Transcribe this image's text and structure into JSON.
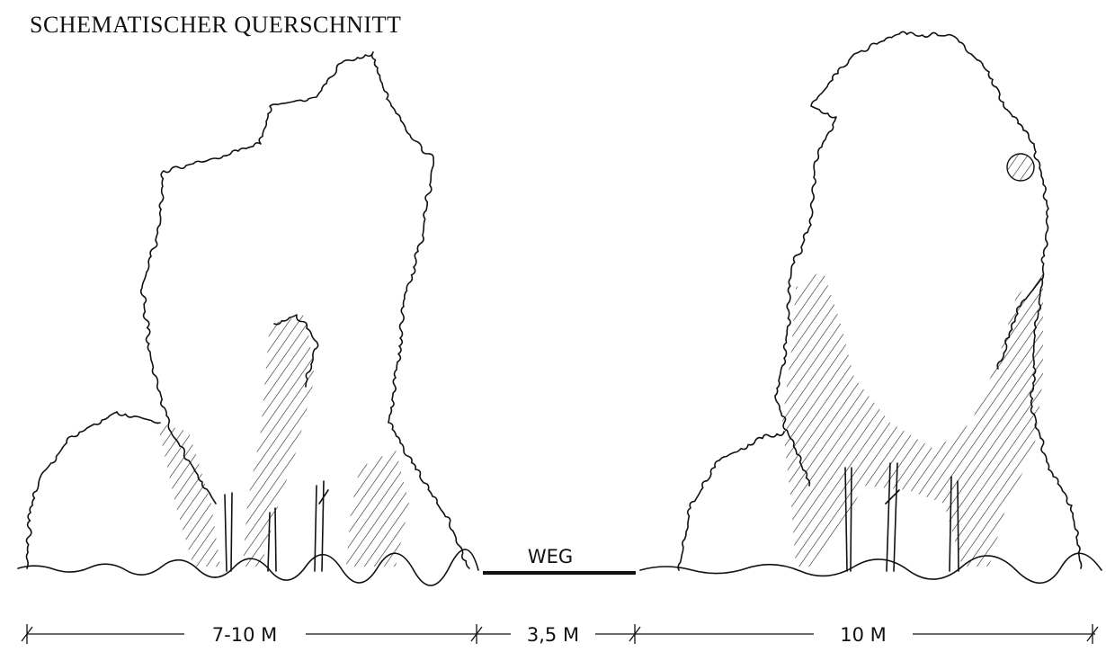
{
  "title": "SCHEMATISCHER QUERSCHNITT",
  "path_label": "WEG",
  "dimensions": [
    {
      "label": "7-10 M"
    },
    {
      "label": "3,5 M"
    },
    {
      "label": "10 M"
    }
  ]
}
